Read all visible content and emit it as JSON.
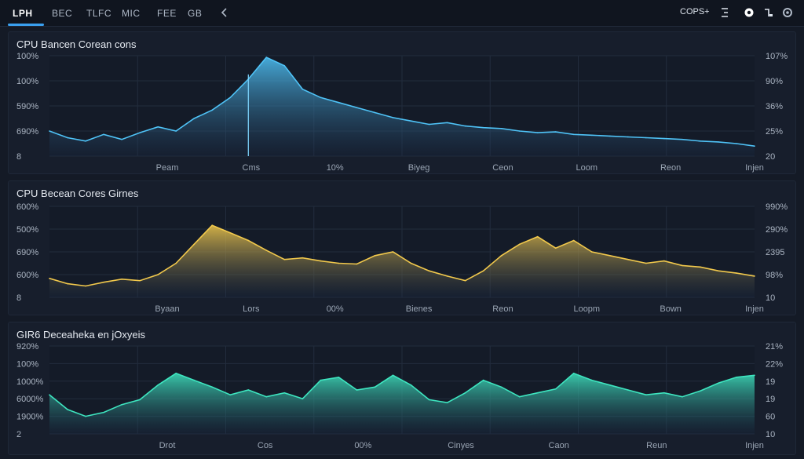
{
  "header": {
    "tabs": [
      {
        "label": "LPH",
        "active": true
      },
      {
        "label": "BEC"
      },
      {
        "label": "TLFC"
      },
      {
        "label": "MIC"
      },
      {
        "label": "FEE"
      },
      {
        "label": "GB"
      }
    ],
    "right_label": "COPS+",
    "icons": [
      "chevron-left-icon",
      "bracket-icon",
      "record-icon",
      "cursor-icon",
      "gear-icon"
    ]
  },
  "chart_data": [
    {
      "type": "area",
      "title": "CPU Bancen Corean cons",
      "y_left_ticks": [
        "100%",
        "100%",
        "590%",
        "690%",
        "8"
      ],
      "y_right_ticks": [
        "107%",
        "90%",
        "36%",
        "25%",
        "20"
      ],
      "x_ticks": [
        "Peam",
        "Cms",
        "10%",
        "Biyeg",
        "Ceon",
        "Loom",
        "Reon",
        "Injen"
      ],
      "series": [
        {
          "values": [
            30,
            22,
            18,
            26,
            20,
            28,
            35,
            30,
            45,
            55,
            70,
            92,
            118,
            108,
            80,
            70,
            64,
            58,
            52,
            46,
            42,
            38,
            40,
            36,
            34,
            33,
            30,
            28,
            29,
            26,
            25,
            24,
            23,
            22,
            21,
            20,
            18,
            17,
            15,
            12
          ]
        }
      ],
      "ylim": [
        0,
        120
      ],
      "color": "#4fc3f7",
      "peak_marker": 11
    },
    {
      "type": "area",
      "title": "CPU Becean Cores Girnes",
      "y_left_ticks": [
        "600%",
        "500%",
        "690%",
        "600%",
        "8"
      ],
      "y_right_ticks": [
        "990%",
        "290%",
        "2395",
        "98%",
        "10"
      ],
      "x_ticks": [
        "Byaan",
        "Lors",
        "00%",
        "Bienes",
        "Reon",
        "Loopm",
        "Bown",
        "Injen"
      ],
      "series": [
        {
          "values": [
            25,
            18,
            15,
            20,
            24,
            22,
            30,
            45,
            70,
            95,
            85,
            75,
            62,
            50,
            52,
            48,
            45,
            44,
            55,
            60,
            45,
            35,
            28,
            22,
            35,
            55,
            70,
            80,
            65,
            75,
            60,
            55,
            50,
            45,
            48,
            42,
            40,
            35,
            32,
            28
          ]
        }
      ],
      "ylim": [
        0,
        120
      ],
      "color": "#f2c94c"
    },
    {
      "type": "area",
      "title": "GIR6 Deceaheka en jOxyeis",
      "y_left_ticks": [
        "920%",
        "100%",
        "1000%",
        "6000%",
        "1900%",
        "2"
      ],
      "y_right_ticks": [
        "21%",
        "22%",
        "19",
        "19",
        "60",
        "10"
      ],
      "x_ticks": [
        "Drot",
        "Cos",
        "00%",
        "Cinyes",
        "Caon",
        "Reun",
        "Injen"
      ],
      "series": [
        {
          "values": [
            40,
            25,
            18,
            22,
            30,
            35,
            50,
            62,
            55,
            48,
            40,
            45,
            38,
            42,
            36,
            55,
            58,
            45,
            48,
            60,
            50,
            35,
            32,
            42,
            55,
            48,
            38,
            42,
            46,
            62,
            55,
            50,
            45,
            40,
            42,
            38,
            44,
            52,
            58,
            60
          ]
        }
      ],
      "ylim": [
        0,
        90
      ],
      "color": "#3ee6c0"
    }
  ]
}
